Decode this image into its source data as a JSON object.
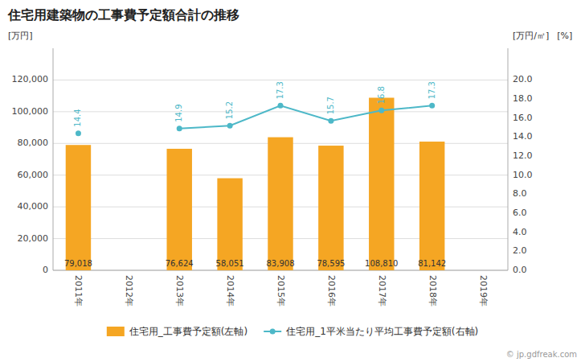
{
  "chart_data": {
    "type": "bar",
    "title": "住宅用建築物の工事費予定額合計の推移",
    "ylabel": "[万円]",
    "y2label": [
      "[万円/㎡]",
      "[%]"
    ],
    "annotation": "© jp.gdfreak.com",
    "categories": [
      "2011年",
      "2012年",
      "2013年",
      "2014年",
      "2015年",
      "2016年",
      "2017年",
      "2018年",
      "2019年"
    ],
    "series": [
      {
        "name": "住宅用_工事費予定額(左軸)",
        "type": "bar",
        "color": "#f5a623",
        "values": [
          79018,
          null,
          76624,
          58051,
          83908,
          78595,
          108810,
          81142,
          null
        ],
        "value_labels": [
          "79,018",
          null,
          "76,624",
          "58,051",
          "83,908",
          "78,595",
          "108,810",
          "81,142",
          null
        ]
      },
      {
        "name": "住宅用_1平米当たり平均工事費予定額(右軸)",
        "type": "line",
        "axis": "y2",
        "color": "#4db8c8",
        "marker": "circle",
        "values": [
          14.4,
          null,
          14.9,
          15.2,
          17.3,
          15.7,
          16.8,
          17.3,
          null
        ]
      }
    ],
    "ylim": [
      0,
      140000
    ],
    "yticks": [
      0,
      {
        "value": 20000,
        "label": "20,000"
      },
      {
        "value": 40000,
        "label": "40,000"
      },
      {
        "value": 60000,
        "label": "60,000"
      },
      {
        "value": 80000,
        "label": "80,000"
      },
      {
        "value": 100000,
        "label": "100,000"
      },
      {
        "value": 120000,
        "label": "120,000"
      }
    ],
    "y2lim": [
      0,
      23.333
    ],
    "y2ticks": [
      {
        "value": 0.0,
        "label": "0.0"
      },
      {
        "value": 2.0,
        "label": "2.0"
      },
      {
        "value": 4.0,
        "label": "4.0"
      },
      {
        "value": 6.0,
        "label": "6.0"
      },
      {
        "value": 8.0,
        "label": "8.0"
      },
      {
        "value": 10.0,
        "label": "10.0"
      },
      {
        "value": 12.0,
        "label": "12.0"
      },
      {
        "value": 14.0,
        "label": "14.0"
      },
      {
        "value": 16.0,
        "label": "16.0"
      },
      {
        "value": 18.0,
        "label": "18.0"
      },
      {
        "value": 20.0,
        "label": "20.0"
      }
    ],
    "grid": true,
    "legend": "bottom",
    "data_labels": true
  }
}
